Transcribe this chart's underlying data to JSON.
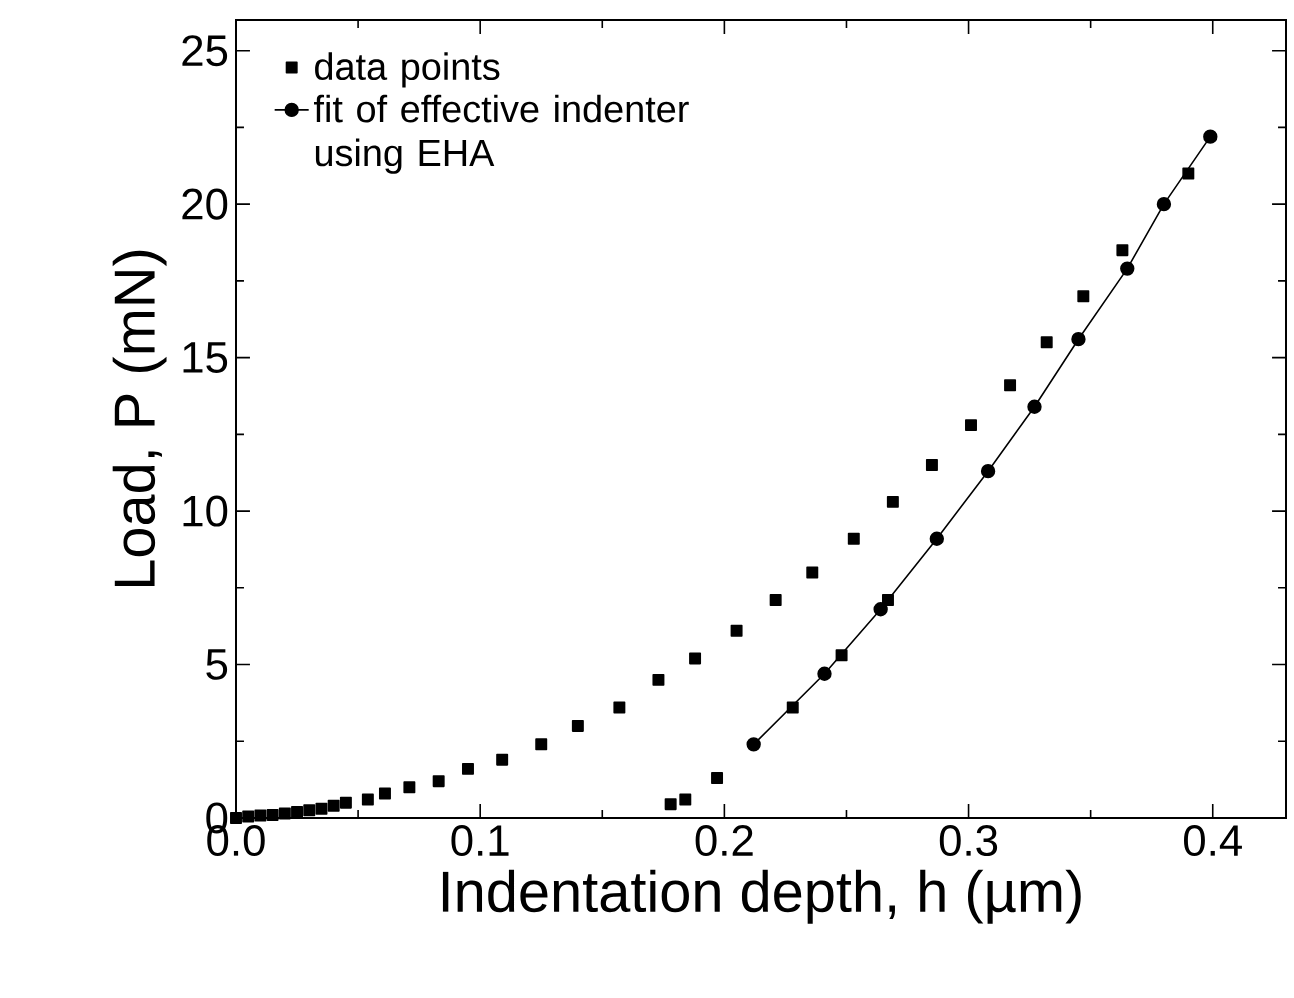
{
  "chart_data": {
    "type": "scatter",
    "xlabel": "Indentation depth, h (µm)",
    "ylabel": "Load, P (mN)",
    "xlim": [
      0,
      0.43
    ],
    "ylim": [
      0,
      26
    ],
    "xticks": [
      {
        "value": 0,
        "label": "0.0"
      },
      {
        "value": 0.1,
        "label": "0.1"
      },
      {
        "value": 0.2,
        "label": "0.2"
      },
      {
        "value": 0.3,
        "label": "0.3"
      },
      {
        "value": 0.4,
        "label": "0.4"
      }
    ],
    "yticks": [
      0,
      5,
      10,
      15,
      20,
      25
    ],
    "legend": "top left",
    "grid": false,
    "series": [
      {
        "name": "data points",
        "marker": "square",
        "color": "#000000",
        "x": [
          0,
          0.005,
          0.01,
          0.015,
          0.02,
          0.025,
          0.03,
          0.035,
          0.04,
          0.045,
          0.054,
          0.061,
          0.071,
          0.083,
          0.095,
          0.109,
          0.125,
          0.14,
          0.157,
          0.173,
          0.188,
          0.205,
          0.221,
          0.236,
          0.253,
          0.269,
          0.285,
          0.301,
          0.317,
          0.332,
          0.347,
          0.363,
          0.38,
          0.39,
          0.178,
          0.184,
          0.197,
          0.228,
          0.248,
          0.267
        ],
        "values": [
          0,
          0.05,
          0.08,
          0.1,
          0.15,
          0.2,
          0.25,
          0.3,
          0.4,
          0.5,
          0.6,
          0.8,
          1.0,
          1.2,
          1.6,
          1.9,
          2.4,
          3.0,
          3.6,
          4.5,
          5.2,
          6.1,
          7.1,
          8.0,
          9.1,
          10.3,
          11.5,
          12.8,
          14.1,
          15.5,
          17.0,
          18.5,
          null,
          21.0,
          0.45,
          0.6,
          1.3,
          3.6,
          5.3,
          7.1
        ]
      },
      {
        "name": "fit of effective indenter using EHA",
        "type": "line",
        "marker": "circle",
        "line_style": "solid",
        "color": "#000000",
        "x": [
          0.212,
          0.241,
          0.264,
          0.287,
          0.308,
          0.327,
          0.345,
          0.365,
          0.38,
          0.399
        ],
        "values": [
          2.4,
          4.7,
          6.8,
          9.1,
          11.3,
          13.4,
          15.6,
          17.9,
          20.0,
          22.2
        ]
      }
    ]
  }
}
